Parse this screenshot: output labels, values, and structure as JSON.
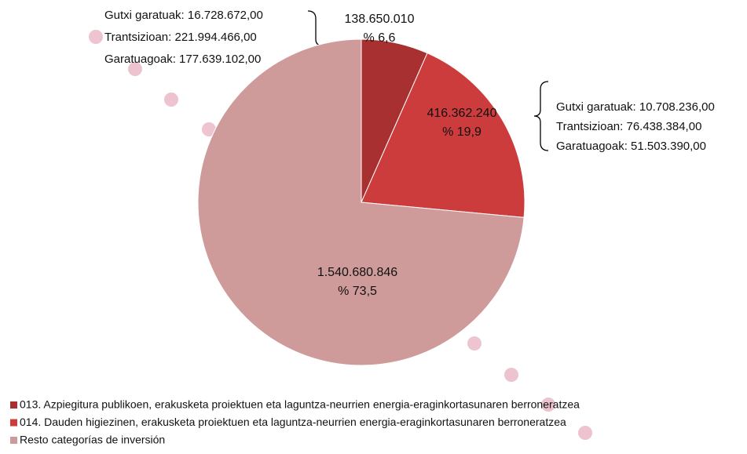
{
  "chart_data": {
    "type": "pie",
    "categories": [
      "013. Azpiegitura publikoen, erakusketa proiektuen eta laguntza-neurrien energia-eraginkortasunaren berroneratzea",
      "014. Dauden higiezinen, erakusketa proiektuen eta laguntza-neurrien energia-eraginkortasunaren berroneratzea",
      "Resto categorías de inversión"
    ],
    "values": [
      138650010,
      416362240,
      1540680846
    ],
    "value_labels": [
      "138.650.010",
      "416.362.240",
      "1.540.680.846"
    ],
    "percentages": [
      6.6,
      19.9,
      73.5
    ],
    "percentage_labels": [
      "% 6,6",
      "% 19,9",
      "% 73,5"
    ],
    "colors": [
      "#a83030",
      "#cc3c3c",
      "#cf9a9a"
    ],
    "legend": "bottom-left",
    "annotations": [
      {
        "lines": [
          "Gutxi garatuak: 16.728.672,00",
          "Trantsizioan: 221.994.466,00",
          "Garatuagoak: 177.639.102,00"
        ]
      },
      {
        "lines": [
          "Gutxi garatuak: 10.708.236,00",
          "Trantsizioan: 76.438.384,00",
          "Garatuagoak: 51.503.390,00"
        ]
      }
    ]
  }
}
